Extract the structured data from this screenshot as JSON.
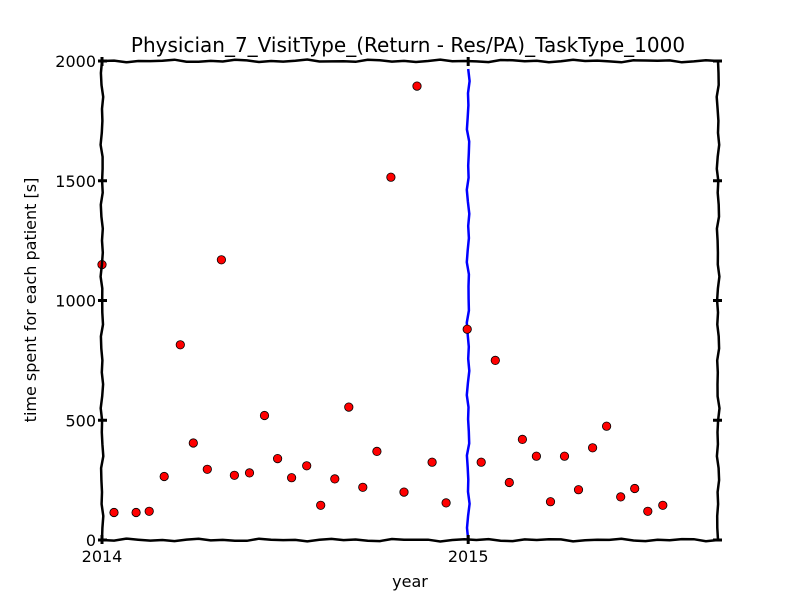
{
  "chart_data": {
    "type": "scatter",
    "title": "Physician_7_VisitType_(Return - Res/PA)_TaskType_1000",
    "xlabel": "year",
    "ylabel": "time spent for each patient [s]",
    "xlim": [
      "2014-01-01",
      "2015-09-07"
    ],
    "ylim": [
      0,
      2000
    ],
    "x_ticks": [
      {
        "date": "2014-01-01",
        "label": "2014"
      },
      {
        "date": "2015-01-01",
        "label": "2015"
      }
    ],
    "y_ticks": [
      {
        "value": 0,
        "label": "0"
      },
      {
        "value": 500,
        "label": "500"
      },
      {
        "value": 1000,
        "label": "1000"
      },
      {
        "value": 1500,
        "label": "1500"
      },
      {
        "value": 2000,
        "label": "2000"
      }
    ],
    "grid": false,
    "marker_color": "#ff0000",
    "vline": {
      "date": "2015-01-01",
      "color": "#0000ff"
    },
    "points": [
      {
        "date": "2014-01-01",
        "y": 1150
      },
      {
        "date": "2014-01-13",
        "y": 115
      },
      {
        "date": "2014-02-04",
        "y": 115
      },
      {
        "date": "2014-02-17",
        "y": 120
      },
      {
        "date": "2014-03-04",
        "y": 265
      },
      {
        "date": "2014-03-20",
        "y": 815
      },
      {
        "date": "2014-04-02",
        "y": 405
      },
      {
        "date": "2014-04-16",
        "y": 295
      },
      {
        "date": "2014-04-30",
        "y": 1170
      },
      {
        "date": "2014-05-13",
        "y": 270
      },
      {
        "date": "2014-05-28",
        "y": 280
      },
      {
        "date": "2014-06-12",
        "y": 520
      },
      {
        "date": "2014-06-25",
        "y": 340
      },
      {
        "date": "2014-07-09",
        "y": 260
      },
      {
        "date": "2014-07-24",
        "y": 310
      },
      {
        "date": "2014-08-07",
        "y": 145
      },
      {
        "date": "2014-08-21",
        "y": 255
      },
      {
        "date": "2014-09-04",
        "y": 555
      },
      {
        "date": "2014-09-18",
        "y": 220
      },
      {
        "date": "2014-10-02",
        "y": 370
      },
      {
        "date": "2014-10-16",
        "y": 1515
      },
      {
        "date": "2014-10-29",
        "y": 200
      },
      {
        "date": "2014-11-11",
        "y": 1895
      },
      {
        "date": "2014-11-26",
        "y": 325
      },
      {
        "date": "2014-12-10",
        "y": 155
      },
      {
        "date": "2014-12-31",
        "y": 880
      },
      {
        "date": "2015-01-14",
        "y": 325
      },
      {
        "date": "2015-01-28",
        "y": 750
      },
      {
        "date": "2015-02-11",
        "y": 240
      },
      {
        "date": "2015-02-24",
        "y": 420
      },
      {
        "date": "2015-03-10",
        "y": 350
      },
      {
        "date": "2015-03-24",
        "y": 160
      },
      {
        "date": "2015-04-07",
        "y": 350
      },
      {
        "date": "2015-04-21",
        "y": 210
      },
      {
        "date": "2015-05-05",
        "y": 385
      },
      {
        "date": "2015-05-19",
        "y": 475
      },
      {
        "date": "2015-06-02",
        "y": 180
      },
      {
        "date": "2015-06-16",
        "y": 215
      },
      {
        "date": "2015-06-29",
        "y": 120
      },
      {
        "date": "2015-07-14",
        "y": 145
      }
    ]
  }
}
